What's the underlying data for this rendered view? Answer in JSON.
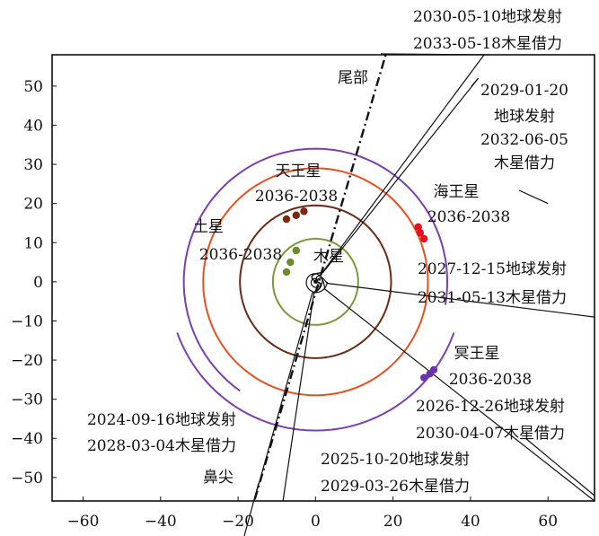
{
  "chart_data": {
    "type": "scatter",
    "title": "",
    "xlabel": "",
    "ylabel": "",
    "xlim": [
      -68,
      72
    ],
    "ylim": [
      -56,
      58
    ],
    "x_ticks": [
      -60,
      -40,
      -20,
      0,
      20,
      40,
      60
    ],
    "y_ticks": [
      50,
      40,
      30,
      20,
      10,
      0,
      -10,
      -20,
      -30,
      -40,
      -50
    ],
    "grid": false,
    "orbits": [
      {
        "name": "木星",
        "radius": 11,
        "color": "#7a9a3a"
      },
      {
        "name": "土星",
        "radius": 19.5,
        "color": "#6b2a14"
      },
      {
        "name": "天王星",
        "radius": 29,
        "color": "#e8501e"
      },
      {
        "name": "海王星",
        "radius": 34,
        "color": "#7a3fb0",
        "arc_from_deg": -10,
        "arc_to_deg": 235
      },
      {
        "name": "冥王星",
        "radius": 38,
        "color": "#7a3fb0",
        "arc_from_deg": 200,
        "arc_to_deg": 340
      }
    ],
    "planet_positions": [
      {
        "name": "土星",
        "years": "2036-2038",
        "color": "#6a8a2c",
        "points": [
          [
            -7.5,
            2.5
          ],
          [
            -6.5,
            5
          ],
          [
            -5,
            8
          ]
        ]
      },
      {
        "name": "天王星",
        "years": "2036-2038",
        "color": "#7a2814",
        "points": [
          [
            -7.5,
            16
          ],
          [
            -5,
            17
          ],
          [
            -3,
            18
          ]
        ]
      },
      {
        "name": "海王星",
        "years": "2036-2038",
        "color": "#e8101e",
        "points": [
          [
            26.5,
            14
          ],
          [
            27,
            12.5
          ],
          [
            28,
            11
          ]
        ]
      },
      {
        "name": "冥王星",
        "years": "2036-2038",
        "color": "#6a32b0",
        "points": [
          [
            28,
            -24.5
          ],
          [
            29.5,
            -23.5
          ],
          [
            30.5,
            -22.5
          ]
        ]
      }
    ],
    "planet_labels": [
      {
        "text": "天王星",
        "years": "2036-2038"
      },
      {
        "text": "土星",
        "years": "2036-2038"
      },
      {
        "text": "海王星",
        "years": "2036-2038"
      },
      {
        "text": "冥王星",
        "years": "2036-2038"
      },
      {
        "text": "木星"
      }
    ],
    "direction_labels": [
      "尾部",
      "鼻尖"
    ],
    "heliopause_axis": {
      "from": [
        -17,
        -60
      ],
      "to": [
        19,
        61
      ]
    },
    "trajectories": [
      {
        "launch": "2030-05-10地球发射",
        "flyby": "2033-05-18木星借力",
        "to": [
          45,
          60
        ]
      },
      {
        "launch": "2029-01-20 地球发射",
        "flyby": "2032-06-05 木星借力",
        "to": [
          42,
          52
        ]
      },
      {
        "launch": "2027-12-15地球发射",
        "flyby": "2031-05-13木星借力",
        "to": [
          72,
          -9
        ]
      },
      {
        "launch": "2026-12-26地球发射",
        "flyby": "2030-04-07木星借力",
        "to": [
          72,
          -56
        ]
      },
      {
        "launch": "2024-09-16地球发射",
        "flyby": "2028-03-04木星借力",
        "to": [
          -17,
          -60
        ]
      },
      {
        "launch": "2025-10-20地球发射",
        "flyby": "2029-03-26木星借力",
        "to": [
          -9,
          -60
        ]
      }
    ]
  }
}
